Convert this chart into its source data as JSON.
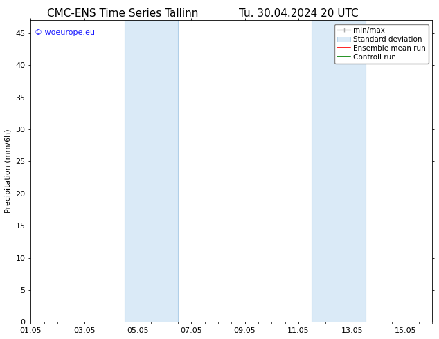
{
  "title_left": "CMC-ENS Time Series Tallinn",
  "title_right": "Tu. 30.04.2024 20 UTC",
  "ylabel": "Precipitation (mm/6h)",
  "xlabel": "",
  "ylim": [
    0,
    47
  ],
  "yticks": [
    0,
    5,
    10,
    15,
    20,
    25,
    30,
    35,
    40,
    45
  ],
  "xtick_labels": [
    "01.05",
    "03.05",
    "05.05",
    "07.05",
    "09.05",
    "11.05",
    "13.05",
    "15.05"
  ],
  "xtick_positions": [
    0,
    2,
    4,
    6,
    8,
    10,
    12,
    14
  ],
  "xlim": [
    0,
    15
  ],
  "shaded_regions": [
    {
      "x_start": 3.5,
      "x_end": 5.5,
      "color": "#daeaf7"
    },
    {
      "x_start": 10.5,
      "x_end": 12.5,
      "color": "#daeaf7"
    }
  ],
  "shaded_region_borders": [
    {
      "x": 3.5,
      "color": "#b0cfe8"
    },
    {
      "x": 5.5,
      "color": "#b0cfe8"
    },
    {
      "x": 10.5,
      "color": "#b0cfe8"
    },
    {
      "x": 12.5,
      "color": "#b0cfe8"
    }
  ],
  "watermark_text": "© woeurope.eu",
  "watermark_color": "#1a1aff",
  "background_color": "#ffffff",
  "plot_bg_color": "#ffffff",
  "legend_items": [
    {
      "label": "min/max",
      "color": "#aaaaaa",
      "style": "line_with_caps"
    },
    {
      "label": "Standard deviation",
      "color": "#daeaf7",
      "style": "filled_rect"
    },
    {
      "label": "Ensemble mean run",
      "color": "#ff0000",
      "style": "line"
    },
    {
      "label": "Controll run",
      "color": "#008000",
      "style": "line"
    }
  ],
  "title_fontsize": 11,
  "axis_fontsize": 8,
  "tick_fontsize": 8,
  "legend_fontsize": 7.5,
  "watermark_fontsize": 8
}
